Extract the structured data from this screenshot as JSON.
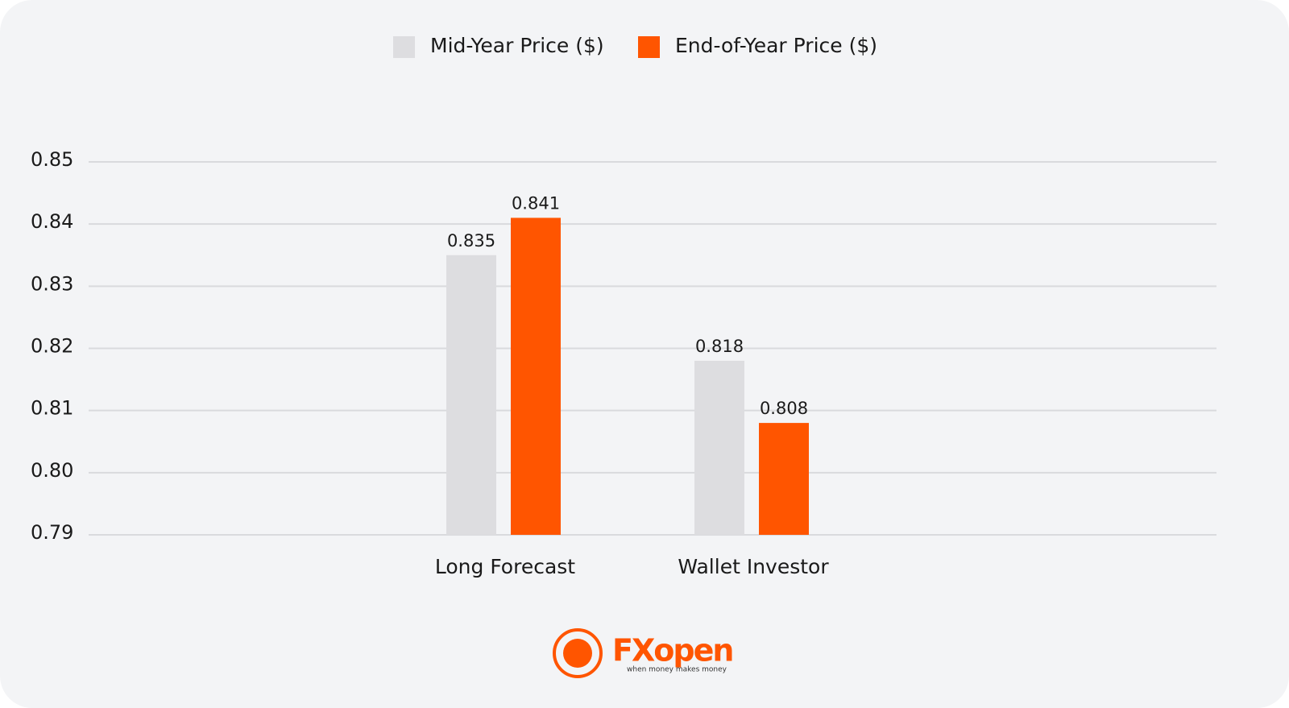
{
  "chart_data": {
    "type": "bar",
    "categories": [
      "Long Forecast",
      "Wallet Investor"
    ],
    "series": [
      {
        "name": "Mid-Year Price ($)",
        "color": "#dddde0",
        "values": [
          0.835,
          0.818
        ]
      },
      {
        "name": "End-of-Year Price ($)",
        "color": "#ff5500",
        "values": [
          0.841,
          0.808
        ]
      }
    ],
    "ylim": [
      0.79,
      0.85
    ],
    "yticks": [
      0.79,
      {
        "value": 0.8,
        "label": "0.80"
      },
      0.81,
      0.82,
      0.83,
      0.84,
      0.85
    ],
    "grid": true,
    "legend": "top"
  },
  "logo": {
    "name": "FXopen",
    "tagline": "when money makes money"
  }
}
